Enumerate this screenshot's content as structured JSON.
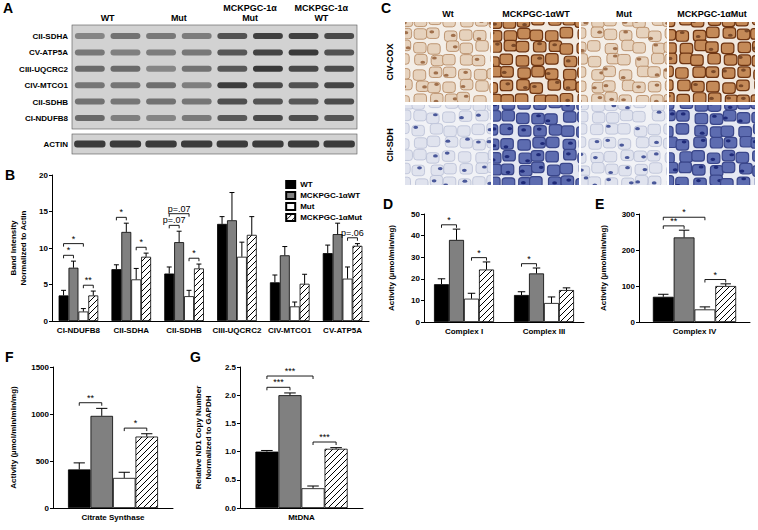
{
  "panel_a": {
    "label": "A",
    "lanes": [
      "WT",
      "Mut",
      "MCKPGC-1α Mut",
      "MCKPGC-1α WT"
    ],
    "bands": [
      "CII-SDHA",
      "CV-ATP5A",
      "CIII-UQCRC2",
      "CIV-MTCO1",
      "CII-SDHB",
      "CI-NDUFB8"
    ],
    "loading_control": "ACTIN"
  },
  "panel_c": {
    "label": "C",
    "columns": [
      "Wt",
      "MCKPGC-1αWT",
      "Mut",
      "MCKPGC-1αMut"
    ],
    "rows": [
      "CIV-COX",
      "CII-SDH"
    ]
  },
  "chart_data": [
    {
      "type": "bar",
      "title": "B",
      "ylabel": "Band Intensity\nNormalized to Actin",
      "categories": [
        "CI-NDUFB8",
        "CII-SDHA",
        "CII-SDHB",
        "CIII-UQCRC2",
        "CIV-MTCO1",
        "CV-ATP5A"
      ],
      "series": [
        {
          "name": "WT",
          "color": "#000000",
          "values": [
            3.5,
            7.1,
            6.5,
            13.3,
            5.3,
            9.3
          ],
          "errors": [
            0.7,
            0.6,
            0.9,
            1.0,
            1.0,
            1.1
          ]
        },
        {
          "name": "MCKPGC-1αWT",
          "color": "#808080",
          "values": [
            7.3,
            12.2,
            10.8,
            13.8,
            9.0,
            11.9
          ],
          "errors": [
            0.9,
            1.2,
            1.5,
            3.8,
            1.2,
            1.5
          ]
        },
        {
          "name": "Mut",
          "color": "#ffffff",
          "values": [
            1.3,
            5.7,
            3.4,
            8.8,
            2.0,
            5.8
          ],
          "errors": [
            0.4,
            1.5,
            0.8,
            2.0,
            0.6,
            1.6
          ]
        },
        {
          "name": "MCKPGC-1αMut",
          "color": "#ffffff",
          "values": [
            3.5,
            8.8,
            7.2,
            11.8,
            5.1,
            10.3
          ],
          "errors": [
            0.6,
            0.5,
            0.6,
            2.5,
            1.3,
            0.3
          ]
        }
      ],
      "ylim": [
        0,
        20
      ],
      "yticks": [
        0,
        5,
        10,
        15,
        20
      ],
      "grid": false,
      "legend": "top-right",
      "annotations": [
        {
          "text": "**",
          "category": "CI-NDUFB8",
          "from": "Mut",
          "to": "MCKPGC-1αMut"
        },
        {
          "text": "*",
          "category": "CI-NDUFB8",
          "from": "WT",
          "to": "MCKPGC-1αWT"
        },
        {
          "text": "*",
          "category": "CI-NDUFB8",
          "from": "WT",
          "to": "Mut"
        },
        {
          "text": "*",
          "category": "CII-SDHA",
          "from": "WT",
          "to": "MCKPGC-1αWT"
        },
        {
          "text": "*",
          "category": "CII-SDHA",
          "from": "Mut",
          "to": "MCKPGC-1αMut"
        },
        {
          "text": "*",
          "category": "CII-SDHB",
          "from": "Mut",
          "to": "MCKPGC-1αMut"
        },
        {
          "text": "p=.07",
          "category": "CII-SDHB",
          "from": "WT",
          "to": "MCKPGC-1αWT"
        },
        {
          "text": "p=.07",
          "category": "CII-SDHB",
          "from": "WT",
          "to": "Mut"
        },
        {
          "text": "p=.06",
          "category": "CV-ATP5A",
          "from": "Mut",
          "to": "MCKPGC-1αMut"
        }
      ]
    },
    {
      "type": "bar",
      "title": "D",
      "ylabel": "Activity (µmol/min/mg)",
      "categories": [
        "Complex I",
        "Complex III"
      ],
      "series": [
        {
          "name": "WT",
          "color": "#000000",
          "values": [
            17.5,
            12.5
          ],
          "errors": [
            2.5,
            1.5
          ]
        },
        {
          "name": "MCKPGC-1αWT",
          "color": "#808080",
          "values": [
            38,
            22.5
          ],
          "errors": [
            5,
            2.5
          ]
        },
        {
          "name": "Mut",
          "color": "#ffffff",
          "values": [
            10.8,
            8.8
          ],
          "errors": [
            2.5,
            2.8
          ]
        },
        {
          "name": "MCKPGC-1αMut",
          "color": "#ffffff",
          "values": [
            24.3,
            14.8
          ],
          "errors": [
            3.5,
            1.0
          ]
        }
      ],
      "ylim": [
        0,
        50
      ],
      "yticks": [
        0,
        10,
        20,
        30,
        40,
        50
      ],
      "grid": false,
      "annotations": [
        {
          "text": "*",
          "category": "Complex I",
          "from": "WT",
          "to": "MCKPGC-1αWT"
        },
        {
          "text": "*",
          "category": "Complex I",
          "from": "Mut",
          "to": "MCKPGC-1αMut"
        },
        {
          "text": "*",
          "category": "Complex III",
          "from": "WT",
          "to": "MCKPGC-1αWT"
        }
      ]
    },
    {
      "type": "bar",
      "title": "E",
      "ylabel": "Activity (µmol/min/mg)",
      "categories": [
        "Complex IV"
      ],
      "series": [
        {
          "name": "WT",
          "color": "#000000",
          "values": [
            70
          ],
          "errors": [
            7
          ]
        },
        {
          "name": "MCKPGC-1αWT",
          "color": "#808080",
          "values": [
            235
          ],
          "errors": [
            20
          ]
        },
        {
          "name": "Mut",
          "color": "#ffffff",
          "values": [
            35
          ],
          "errors": [
            7
          ]
        },
        {
          "name": "MCKPGC-1αMut",
          "color": "#ffffff",
          "values": [
            100
          ],
          "errors": [
            6
          ]
        }
      ],
      "ylim": [
        0,
        300
      ],
      "yticks": [
        0,
        100,
        200,
        300
      ],
      "grid": false,
      "annotations": [
        {
          "text": "*",
          "category": "Complex IV",
          "from": "Mut",
          "to": "MCKPGC-1αMut"
        },
        {
          "text": "**",
          "category": "Complex IV",
          "from": "WT",
          "to": "MCKPGC-1αWT"
        },
        {
          "text": "*",
          "category": "Complex IV",
          "from": "WT",
          "to": "Mut"
        }
      ]
    },
    {
      "type": "bar",
      "title": "F",
      "ylabel": "Activity (µmol/min/min/mg)",
      "categories": [
        "Citrate Synthase"
      ],
      "series": [
        {
          "name": "WT",
          "color": "#000000",
          "values": [
            410
          ],
          "errors": [
            70
          ]
        },
        {
          "name": "MCKPGC-1αWT",
          "color": "#808080",
          "values": [
            980
          ],
          "errors": [
            80
          ]
        },
        {
          "name": "Mut",
          "color": "#ffffff",
          "values": [
            320
          ],
          "errors": [
            60
          ]
        },
        {
          "name": "MCKPGC-1αMut",
          "color": "#ffffff",
          "values": [
            760
          ],
          "errors": [
            30
          ]
        }
      ],
      "ylim": [
        0,
        1500
      ],
      "yticks": [
        0,
        500,
        1000,
        1500
      ],
      "grid": false,
      "annotations": [
        {
          "text": "**",
          "category": "Citrate Synthase",
          "from": "WT",
          "to": "MCKPGC-1αWT"
        },
        {
          "text": "*",
          "category": "Citrate Synthase",
          "from": "Mut",
          "to": "MCKPGC-1αMut"
        }
      ]
    },
    {
      "type": "bar",
      "title": "G",
      "ylabel": "Relative ND1 Copy Number\nNormalized to GAPDH",
      "categories": [
        "MtDNA"
      ],
      "series": [
        {
          "name": "WT",
          "color": "#000000",
          "values": [
            1.0
          ],
          "errors": [
            0.02
          ]
        },
        {
          "name": "MCKPGC-1αWT",
          "color": "#808080",
          "values": [
            2.0
          ],
          "errors": [
            0.04
          ]
        },
        {
          "name": "Mut",
          "color": "#ffffff",
          "values": [
            0.35
          ],
          "errors": [
            0.04
          ]
        },
        {
          "name": "MCKPGC-1αMut",
          "color": "#ffffff",
          "values": [
            1.05
          ],
          "errors": [
            0.02
          ]
        }
      ],
      "ylim": [
        0,
        2.5
      ],
      "yticks": [
        {
          "value": 0,
          "label": "0.0"
        },
        0.5,
        {
          "value": 1,
          "label": "1.0"
        },
        1.5,
        {
          "value": 2,
          "label": "2.0"
        },
        2.5
      ],
      "grid": false,
      "annotations": [
        {
          "text": "***",
          "category": "MtDNA",
          "from": "Mut",
          "to": "MCKPGC-1αMut"
        },
        {
          "text": "***",
          "category": "MtDNA",
          "from": "WT",
          "to": "MCKPGC-1αWT"
        },
        {
          "text": "***",
          "category": "MtDNA",
          "from": "WT",
          "to": "Mut"
        }
      ]
    }
  ]
}
